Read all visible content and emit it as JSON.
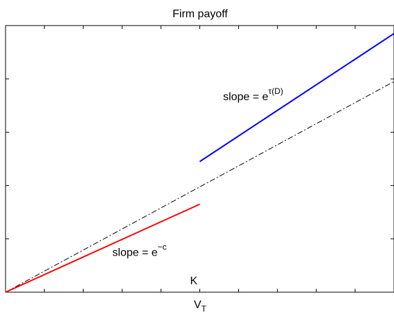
{
  "chart_data": {
    "type": "line",
    "title": "Firm payoff",
    "xlabel": "V",
    "xlabel_sub": "T",
    "ylabel": "",
    "xlim": [
      0,
      10
    ],
    "ylim": [
      0,
      5
    ],
    "grid": false,
    "x_minor_ticks": [
      1,
      2,
      3,
      4,
      5,
      6,
      7,
      8,
      9
    ],
    "y_minor_ticks": [
      1,
      2,
      3,
      4
    ],
    "series": [
      {
        "color": "#000000",
        "style": "dashdot",
        "x": [
          0,
          10
        ],
        "y": [
          0,
          3.95
        ]
      },
      {
        "color": "#ff0000",
        "style": "solid",
        "x": [
          0,
          5
        ],
        "y": [
          0,
          1.65
        ]
      },
      {
        "color": "#0000ff",
        "style": "solid",
        "x": [
          5,
          10
        ],
        "y": [
          2.45,
          4.85
        ]
      }
    ],
    "annotations": [
      {
        "key": "blue",
        "base": "slope = e",
        "sup": "τ(D)",
        "x": 5.6,
        "y": 3.6
      },
      {
        "key": "red",
        "base": "slope = e",
        "sup": "−c",
        "x": 2.75,
        "y": 0.68
      },
      {
        "key": "k",
        "base": "K",
        "sup": "",
        "x": 4.75,
        "y": 0.15
      }
    ]
  }
}
